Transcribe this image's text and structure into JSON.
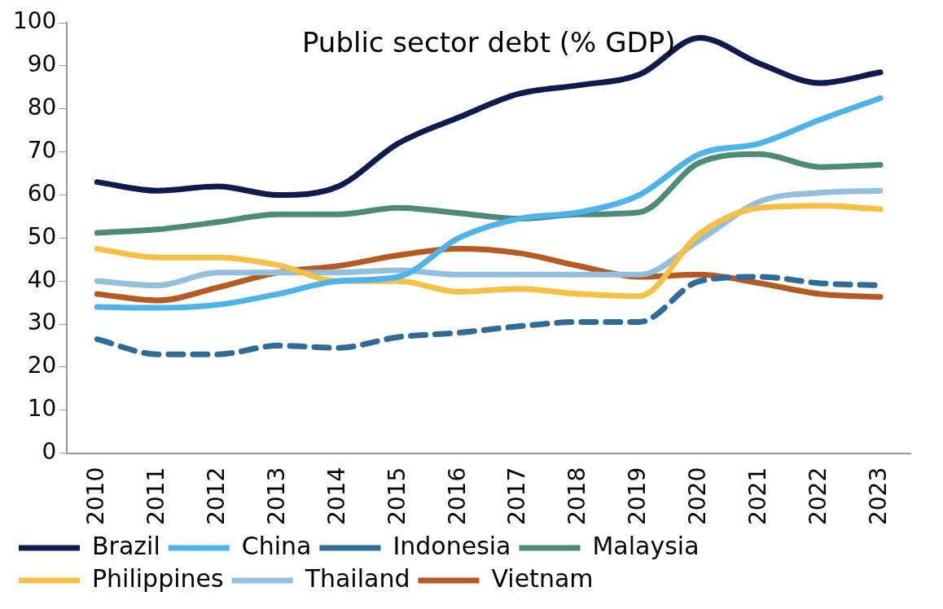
{
  "chart_data": {
    "type": "line",
    "title": "Public sector debt (% GDP)",
    "categories": [
      "2010",
      "2011",
      "2012",
      "2013",
      "2014",
      "2015",
      "2016",
      "2017",
      "2018",
      "2019",
      "2020",
      "2021",
      "2022",
      "2023"
    ],
    "ylim": [
      0,
      100
    ],
    "yticks": [
      0,
      10,
      20,
      30,
      40,
      50,
      60,
      70,
      80,
      90,
      100
    ],
    "grid": false,
    "legend": "bottom",
    "marker": "none",
    "series": [
      {
        "name": "Brazil",
        "color": "#0d1b4f",
        "line_style": "solid",
        "values": [
          63,
          61,
          62,
          60,
          62,
          72,
          78,
          83.5,
          85.5,
          88,
          96.5,
          90.5,
          86,
          88.5
        ]
      },
      {
        "name": "China",
        "color": "#4db3e9",
        "line_style": "solid",
        "values": [
          34,
          33.8,
          34.5,
          37,
          40,
          41,
          50,
          54.5,
          56,
          60,
          69.5,
          72,
          77.5,
          82.5
        ]
      },
      {
        "name": "Indonesia",
        "color": "#2e6b97",
        "line_style": "dashed",
        "values": [
          26.5,
          23,
          23,
          25,
          24.5,
          27,
          28,
          29.5,
          30.5,
          30.5,
          40,
          41,
          39.5,
          39
        ]
      },
      {
        "name": "Malaysia",
        "color": "#4e8a78",
        "line_style": "solid",
        "values": [
          51.2,
          52,
          53.7,
          55.5,
          55.5,
          57,
          55.8,
          54.5,
          55.5,
          56,
          67.5,
          69.5,
          66.5,
          67
        ]
      },
      {
        "name": "Philippines",
        "color": "#f6c043",
        "line_style": "solid",
        "values": [
          47.5,
          45.5,
          45.5,
          43.7,
          40,
          40,
          37.5,
          38.2,
          37,
          36.5,
          51,
          57,
          57.5,
          56.7
        ]
      },
      {
        "name": "Thailand",
        "color": "#93bedc",
        "line_style": "solid",
        "values": [
          40,
          39,
          42,
          42,
          42,
          42.5,
          41.5,
          41.5,
          41.5,
          41.5,
          49.5,
          58.5,
          60.5,
          61
        ]
      },
      {
        "name": "Vietnam",
        "color": "#b55a22",
        "line_style": "solid",
        "values": [
          37,
          35.5,
          38.5,
          42,
          43.5,
          46,
          47.5,
          46.5,
          43.5,
          41,
          41.5,
          39.5,
          37,
          36.3
        ]
      }
    ]
  }
}
